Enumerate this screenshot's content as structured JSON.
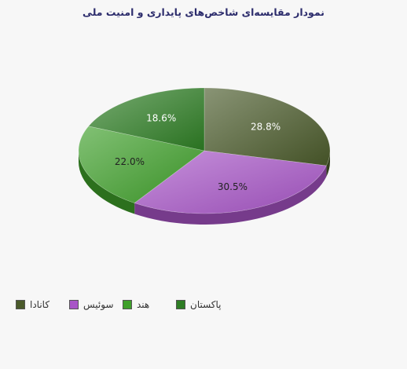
{
  "chart_data": {
    "type": "pie",
    "title": "نمودار مقایسه‌ای شاخص‌های پایداری و امنیت ملی",
    "slices": [
      {
        "name": "کانادا",
        "value": 28.8,
        "label": "28.8%",
        "color": "#4a5a2a"
      },
      {
        "name": "سوئیس",
        "value": 30.5,
        "label": "30.5%",
        "color": "#a855c7"
      },
      {
        "name": "هند",
        "value": 22.0,
        "label": "22.0%",
        "color": "#3fa02a"
      },
      {
        "name": "پاکستان",
        "value": 18.6,
        "label": "18.6%",
        "color": "#2e7d24"
      }
    ],
    "legend_position": "bottom-left",
    "style": "3d-tilted"
  }
}
